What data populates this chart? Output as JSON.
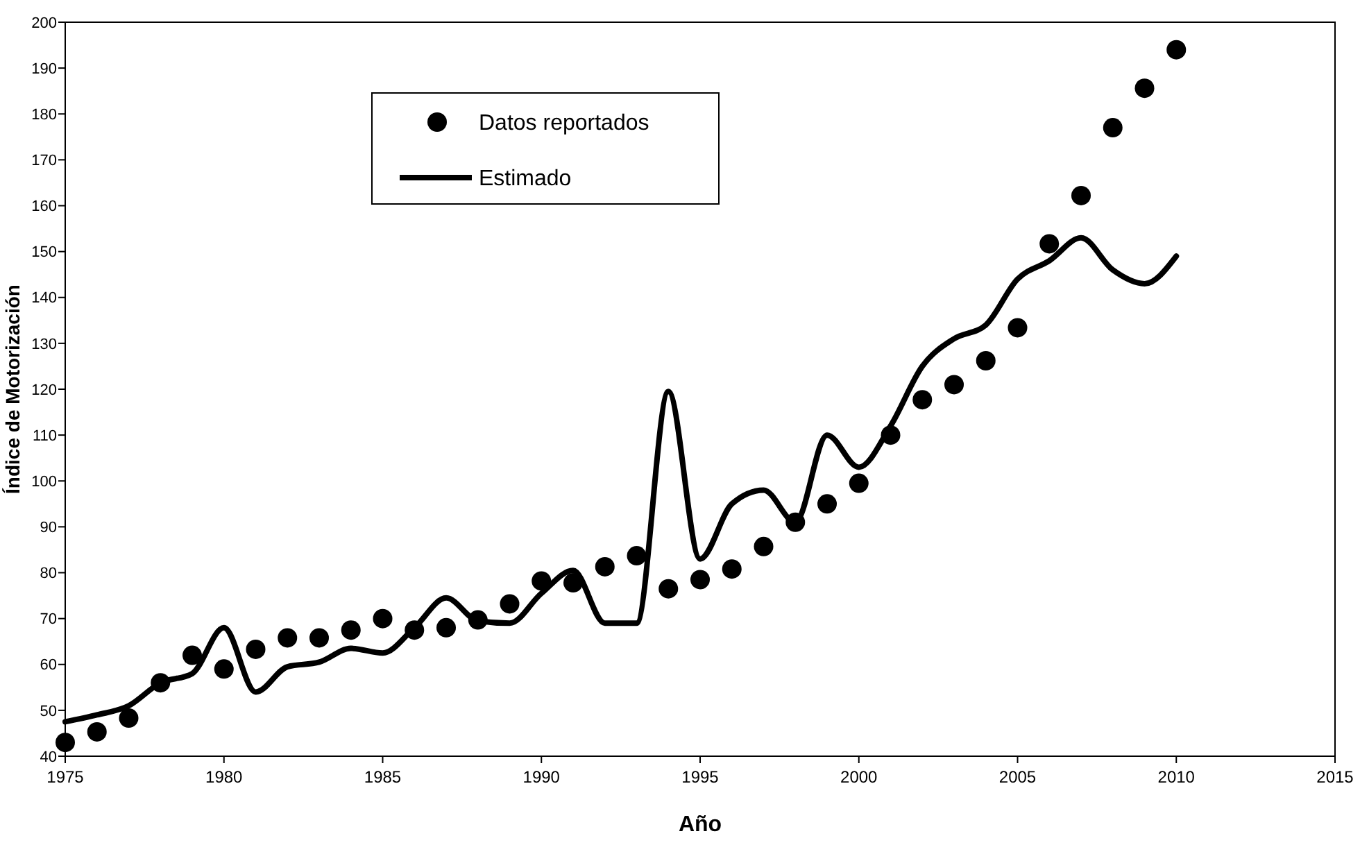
{
  "chart_data": {
    "type": "scatter",
    "xlabel": "Año",
    "ylabel": "Índice de Motorización",
    "x": [
      1975,
      1976,
      1977,
      1978,
      1979,
      1980,
      1981,
      1982,
      1983,
      1984,
      1985,
      1986,
      1987,
      1988,
      1989,
      1990,
      1991,
      1992,
      1993,
      1994,
      1995,
      1996,
      1997,
      1998,
      1999,
      2000,
      2001,
      2002,
      2003,
      2004,
      2005,
      2006,
      2007,
      2008,
      2009,
      2010
    ],
    "series": [
      {
        "name": "Datos reportados",
        "color": "#000000",
        "marker": "circle",
        "values": [
          43,
          45.3,
          48.3,
          56,
          62,
          59,
          63.3,
          65.8,
          65.8,
          67.5,
          70,
          67.5,
          68,
          69.7,
          73.2,
          78.2,
          77.8,
          81.3,
          83.7,
          76.5,
          78.5,
          80.8,
          85.7,
          91,
          95,
          99.5,
          110,
          117.7,
          121,
          126.2,
          133.4,
          151.7,
          162.2,
          177,
          185.6,
          194
        ]
      },
      {
        "name": "Estimado",
        "type": "line",
        "color": "#000000",
        "marker": "none",
        "line_style": "solid",
        "values": [
          47.5,
          49,
          51,
          56,
          58,
          68,
          54,
          59.5,
          60.5,
          63.5,
          62.5,
          68,
          74.5,
          69.5,
          69,
          75.5,
          80.5,
          69,
          69,
          119.5,
          83,
          95,
          98,
          91,
          110,
          103,
          112,
          125,
          131,
          134,
          144,
          148,
          153,
          146,
          143,
          149
        ]
      }
    ],
    "xlim": [
      1975,
      2015
    ],
    "xticks": [
      1975,
      1980,
      1985,
      1990,
      1995,
      2000,
      2005,
      2010,
      2015
    ],
    "ylim": [
      40,
      200
    ],
    "yticks": [
      40,
      50,
      60,
      70,
      80,
      90,
      100,
      110,
      120,
      130,
      140,
      150,
      160,
      170,
      180,
      190,
      200
    ],
    "grid": false,
    "legend": "top left"
  }
}
